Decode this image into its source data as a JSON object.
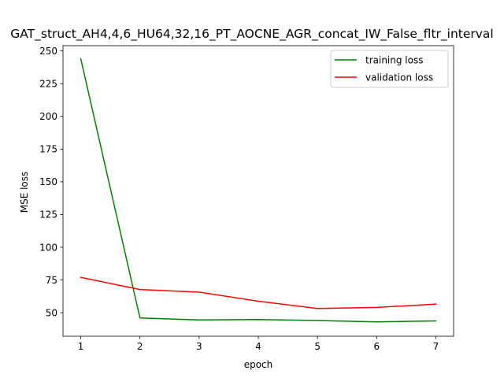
{
  "chart_data": {
    "type": "line",
    "title": "GAT_struct_AH4,4,6_HU64,32,16_PT_AOCNE_AGR_concat_IW_False_fltr_interval",
    "xlabel": "epoch",
    "ylabel": "MSE loss",
    "x": [
      1,
      2,
      3,
      4,
      5,
      6,
      7
    ],
    "xlim": [
      0.7,
      7.3
    ],
    "ylim": [
      32,
      254
    ],
    "xticks": [
      1,
      2,
      3,
      4,
      5,
      6,
      7
    ],
    "yticks": [
      50,
      75,
      100,
      125,
      150,
      175,
      200,
      225,
      250
    ],
    "grid": false,
    "legend_position": "top-right",
    "series": [
      {
        "name": "training loss",
        "color": "#008000",
        "values": [
          244,
          46,
          44.5,
          44.8,
          44,
          43,
          43.7
        ]
      },
      {
        "name": "validation loss",
        "color": "#ff0000",
        "values": [
          77,
          67.7,
          65.7,
          58.8,
          53.2,
          54,
          56.6
        ]
      }
    ]
  }
}
